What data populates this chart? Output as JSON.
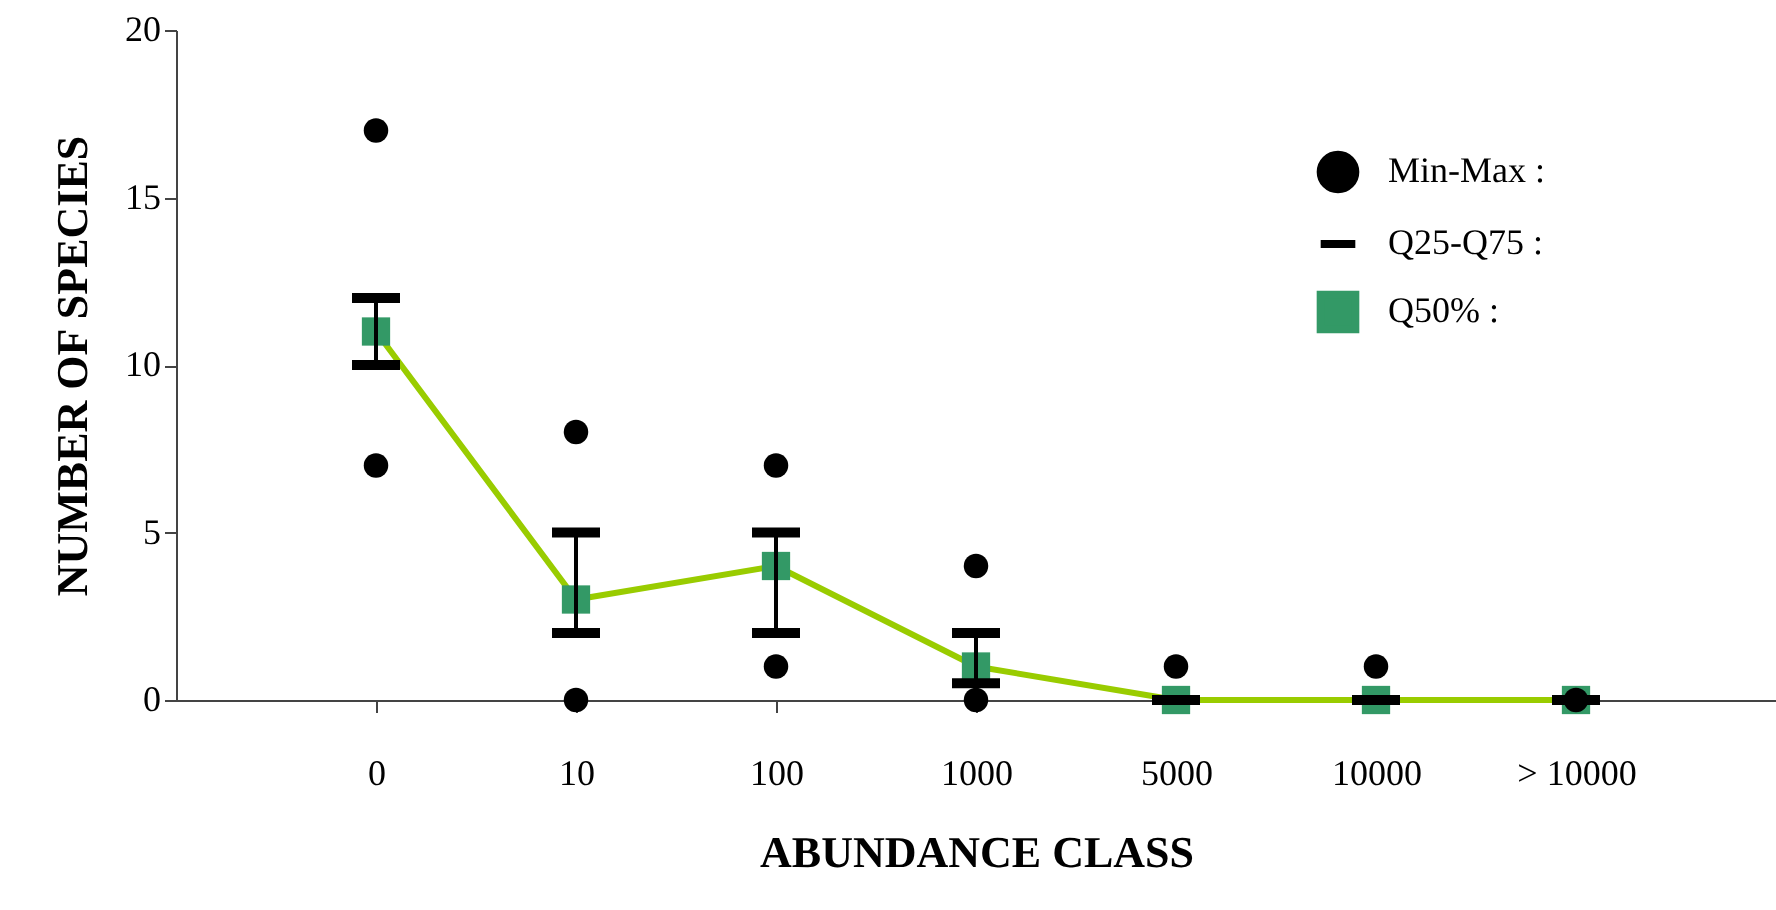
{
  "chart_data": {
    "type": "scatter",
    "xlabel": "ABUNDANCE CLASS",
    "ylabel": "NUMBER OF SPECIES",
    "categories": [
      "0",
      "10",
      "100",
      "1000",
      "5000",
      "10000",
      "> 10000"
    ],
    "ylim": [
      0,
      20
    ],
    "yticks": [
      0,
      5,
      10,
      15,
      20
    ],
    "legend": "top right",
    "annotations": [
      "Q25-Q75 :"
    ],
    "series": [
      {
        "type": "line",
        "marker": "none",
        "color": "#99cc00",
        "values": [
          11,
          3,
          4,
          1,
          0,
          0,
          0
        ]
      },
      {
        "name": "Q50% :",
        "marker": "square",
        "color": "#339966",
        "values": [
          11,
          3,
          4,
          1,
          0,
          0,
          0
        ],
        "errors": [
          [
            10,
            12
          ],
          [
            2,
            5
          ],
          [
            2,
            5
          ],
          [
            0.5,
            2
          ],
          [
            0,
            0
          ],
          [
            0,
            0
          ],
          [
            0,
            0
          ]
        ]
      },
      {
        "name": "Min-Max :",
        "marker": "circle",
        "color": "#000000",
        "values": [
          17,
          8,
          7,
          4,
          1,
          1,
          0
        ]
      },
      {
        "marker": "circle",
        "color": "#000000",
        "values": [
          7,
          0,
          1,
          0,
          null,
          null,
          null
        ]
      }
    ]
  }
}
